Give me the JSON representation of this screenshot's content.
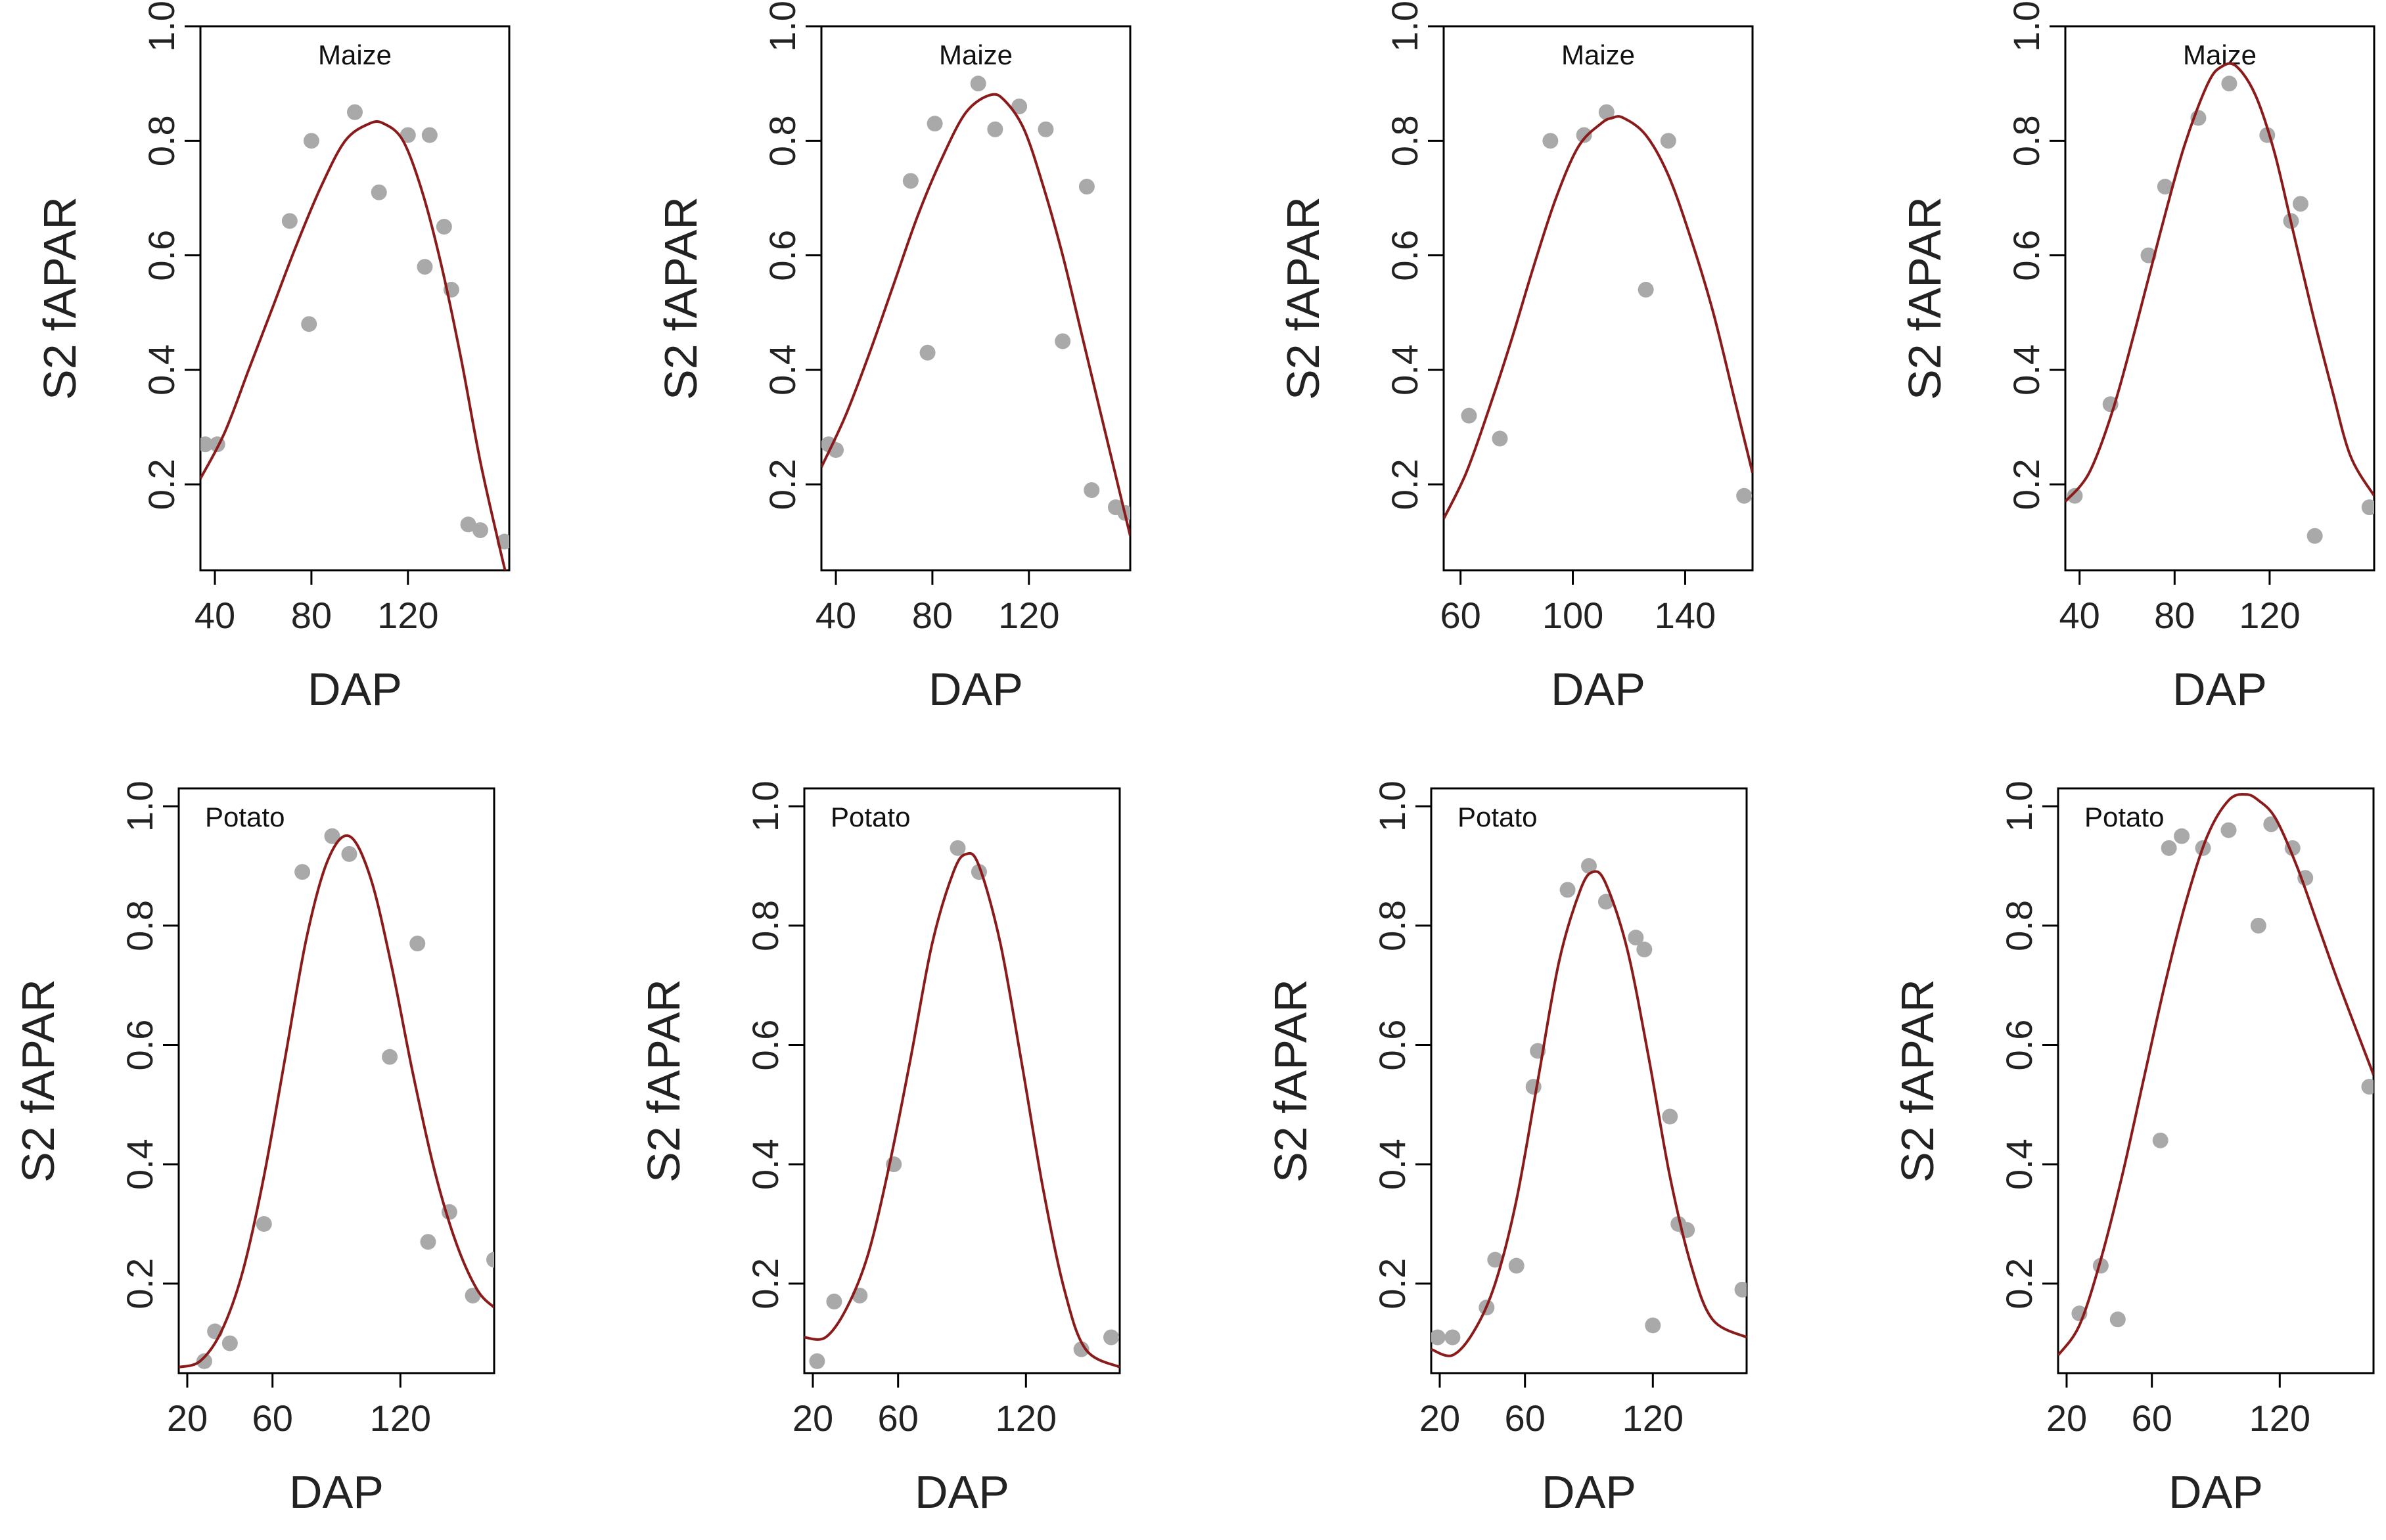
{
  "figure": {
    "colors": {
      "point": "#a9a9a9",
      "curve": "#8b1a1a",
      "frame": "#000000",
      "text": "#222222"
    }
  },
  "chart_data": [
    {
      "type": "scatter",
      "title": "Maize",
      "xlabel": "DAP",
      "ylabel": "S2 fAPAR",
      "xlim": [
        34,
        162
      ],
      "ylim": [
        0.05,
        1.0
      ],
      "xticks": [
        "40",
        "80",
        "120"
      ],
      "xtick_values": [
        40,
        80,
        120
      ],
      "yticks": [
        "0.2",
        "0.4",
        "0.6",
        "0.8",
        "1.0"
      ],
      "ytick_values": [
        0.2,
        0.4,
        0.6,
        0.8,
        1.0
      ],
      "points": [
        [
          36,
          0.27
        ],
        [
          41,
          0.27
        ],
        [
          71,
          0.66
        ],
        [
          79,
          0.48
        ],
        [
          80,
          0.8
        ],
        [
          98,
          0.85
        ],
        [
          108,
          0.71
        ],
        [
          120,
          0.81
        ],
        [
          127,
          0.58
        ],
        [
          129,
          0.81
        ],
        [
          135,
          0.65
        ],
        [
          138,
          0.54
        ],
        [
          145,
          0.13
        ],
        [
          150,
          0.12
        ],
        [
          160,
          0.1
        ]
      ],
      "fit": {
        "x": [
          34,
          44,
          54,
          64,
          74,
          84,
          94,
          104,
          110,
          118,
          126,
          134,
          142,
          150,
          158,
          162
        ],
        "y": [
          0.21,
          0.29,
          0.4,
          0.51,
          0.62,
          0.72,
          0.8,
          0.83,
          0.83,
          0.8,
          0.71,
          0.58,
          0.42,
          0.24,
          0.09,
          0.02
        ]
      }
    },
    {
      "type": "scatter",
      "title": "Maize",
      "xlabel": "DAP",
      "ylabel": "S2 fAPAR",
      "xlim": [
        34,
        162
      ],
      "ylim": [
        0.05,
        1.0
      ],
      "xticks": [
        "40",
        "80",
        "120"
      ],
      "xtick_values": [
        40,
        80,
        120
      ],
      "yticks": [
        "0.2",
        "0.4",
        "0.6",
        "0.8",
        "1.0"
      ],
      "ytick_values": [
        0.2,
        0.4,
        0.6,
        0.8,
        1.0
      ],
      "points": [
        [
          37,
          0.27
        ],
        [
          40,
          0.26
        ],
        [
          71,
          0.73
        ],
        [
          78,
          0.43
        ],
        [
          81,
          0.83
        ],
        [
          99,
          0.9
        ],
        [
          106,
          0.82
        ],
        [
          116,
          0.86
        ],
        [
          127,
          0.82
        ],
        [
          134,
          0.45
        ],
        [
          144,
          0.72
        ],
        [
          146,
          0.19
        ],
        [
          156,
          0.16
        ],
        [
          160,
          0.15
        ]
      ],
      "fit": {
        "x": [
          34,
          44,
          54,
          64,
          74,
          84,
          94,
          104,
          110,
          118,
          126,
          134,
          142,
          150,
          158,
          162
        ],
        "y": [
          0.23,
          0.32,
          0.43,
          0.55,
          0.67,
          0.77,
          0.85,
          0.88,
          0.87,
          0.82,
          0.72,
          0.6,
          0.46,
          0.32,
          0.18,
          0.11
        ]
      }
    },
    {
      "type": "scatter",
      "title": "Maize",
      "xlabel": "DAP",
      "ylabel": "S2 fAPAR",
      "xlim": [
        54,
        164
      ],
      "ylim": [
        0.05,
        1.0
      ],
      "xticks": [
        "60",
        "100",
        "140"
      ],
      "xtick_values": [
        60,
        100,
        140
      ],
      "yticks": [
        "0.2",
        "0.4",
        "0.6",
        "0.8",
        "1.0"
      ],
      "ytick_values": [
        0.2,
        0.4,
        0.6,
        0.8,
        1.0
      ],
      "points": [
        [
          63,
          0.32
        ],
        [
          74,
          0.28
        ],
        [
          92,
          0.8
        ],
        [
          104,
          0.81
        ],
        [
          112,
          0.85
        ],
        [
          126,
          0.54
        ],
        [
          134,
          0.8
        ],
        [
          161,
          0.18
        ]
      ],
      "fit": {
        "x": [
          54,
          62,
          70,
          78,
          86,
          94,
          102,
          110,
          114,
          118,
          126,
          134,
          142,
          150,
          158,
          164
        ],
        "y": [
          0.14,
          0.22,
          0.33,
          0.45,
          0.58,
          0.7,
          0.79,
          0.83,
          0.84,
          0.84,
          0.81,
          0.74,
          0.63,
          0.5,
          0.34,
          0.22
        ]
      }
    },
    {
      "type": "scatter",
      "title": "Maize",
      "xlabel": "DAP",
      "ylabel": "S2 fAPAR",
      "xlim": [
        34,
        164
      ],
      "ylim": [
        0.05,
        1.0
      ],
      "xticks": [
        "40",
        "80",
        "120"
      ],
      "xtick_values": [
        40,
        80,
        120
      ],
      "yticks": [
        "0.2",
        "0.4",
        "0.6",
        "0.8",
        "1.0"
      ],
      "ytick_values": [
        0.2,
        0.4,
        0.6,
        0.8,
        1.0
      ],
      "points": [
        [
          38,
          0.18
        ],
        [
          53,
          0.34
        ],
        [
          69,
          0.6
        ],
        [
          76,
          0.72
        ],
        [
          90,
          0.84
        ],
        [
          103,
          0.9
        ],
        [
          119,
          0.81
        ],
        [
          129,
          0.66
        ],
        [
          133,
          0.69
        ],
        [
          139,
          0.11
        ],
        [
          162,
          0.16
        ]
      ],
      "fit": {
        "x": [
          34,
          44,
          54,
          64,
          74,
          84,
          94,
          100,
          106,
          114,
          122,
          130,
          138,
          146,
          154,
          164
        ],
        "y": [
          0.17,
          0.22,
          0.33,
          0.48,
          0.64,
          0.79,
          0.9,
          0.93,
          0.93,
          0.88,
          0.78,
          0.64,
          0.5,
          0.37,
          0.25,
          0.18
        ]
      }
    },
    {
      "type": "scatter",
      "title": "Potato",
      "xlabel": "DAP",
      "ylabel": "S2 fAPAR",
      "xlim": [
        16,
        164
      ],
      "ylim": [
        0.05,
        1.03
      ],
      "xticks": [
        "20",
        "60",
        "120"
      ],
      "xtick_values": [
        20,
        60,
        120
      ],
      "yticks": [
        "0.2",
        "0.4",
        "0.6",
        "0.8",
        "1.0"
      ],
      "ytick_values": [
        0.2,
        0.4,
        0.6,
        0.8,
        1.0
      ],
      "points": [
        [
          28,
          0.07
        ],
        [
          33,
          0.12
        ],
        [
          40,
          0.1
        ],
        [
          56,
          0.3
        ],
        [
          74,
          0.89
        ],
        [
          88,
          0.95
        ],
        [
          96,
          0.92
        ],
        [
          115,
          0.58
        ],
        [
          128,
          0.77
        ],
        [
          133,
          0.27
        ],
        [
          143,
          0.32
        ],
        [
          154,
          0.18
        ],
        [
          164,
          0.24
        ]
      ],
      "fit": {
        "x": [
          16,
          26,
          36,
          46,
          56,
          66,
          76,
          86,
          96,
          106,
          116,
          126,
          136,
          146,
          156,
          164
        ],
        "y": [
          0.06,
          0.07,
          0.12,
          0.22,
          0.38,
          0.58,
          0.78,
          0.91,
          0.95,
          0.88,
          0.73,
          0.55,
          0.39,
          0.27,
          0.19,
          0.16
        ]
      }
    },
    {
      "type": "scatter",
      "title": "Potato",
      "xlabel": "DAP",
      "ylabel": "S2 fAPAR",
      "xlim": [
        16,
        164
      ],
      "ylim": [
        0.05,
        1.03
      ],
      "xticks": [
        "20",
        "60",
        "120"
      ],
      "xtick_values": [
        20,
        60,
        120
      ],
      "yticks": [
        "0.2",
        "0.4",
        "0.6",
        "0.8",
        "1.0"
      ],
      "ytick_values": [
        0.2,
        0.4,
        0.6,
        0.8,
        1.0
      ],
      "points": [
        [
          22,
          0.07
        ],
        [
          30,
          0.17
        ],
        [
          42,
          0.18
        ],
        [
          58,
          0.4
        ],
        [
          88,
          0.93
        ],
        [
          98,
          0.89
        ],
        [
          146,
          0.09
        ],
        [
          160,
          0.11
        ]
      ],
      "fit": {
        "x": [
          16,
          26,
          36,
          46,
          56,
          66,
          76,
          86,
          92,
          98,
          108,
          118,
          128,
          138,
          148,
          164
        ],
        "y": [
          0.11,
          0.11,
          0.16,
          0.25,
          0.4,
          0.58,
          0.77,
          0.89,
          0.92,
          0.9,
          0.77,
          0.57,
          0.36,
          0.19,
          0.09,
          0.06
        ]
      }
    },
    {
      "type": "scatter",
      "title": "Potato",
      "xlabel": "DAP",
      "ylabel": "S2 fAPAR",
      "xlim": [
        16,
        164
      ],
      "ylim": [
        0.05,
        1.03
      ],
      "xticks": [
        "20",
        "60",
        "120"
      ],
      "xtick_values": [
        20,
        60,
        120
      ],
      "yticks": [
        "0.2",
        "0.4",
        "0.6",
        "0.8",
        "1.0"
      ],
      "ytick_values": [
        0.2,
        0.4,
        0.6,
        0.8,
        1.0
      ],
      "points": [
        [
          19,
          0.11
        ],
        [
          26,
          0.11
        ],
        [
          42,
          0.16
        ],
        [
          46,
          0.24
        ],
        [
          56,
          0.23
        ],
        [
          64,
          0.53
        ],
        [
          66,
          0.59
        ],
        [
          80,
          0.86
        ],
        [
          90,
          0.9
        ],
        [
          98,
          0.84
        ],
        [
          112,
          0.78
        ],
        [
          116,
          0.76
        ],
        [
          120,
          0.13
        ],
        [
          128,
          0.48
        ],
        [
          132,
          0.3
        ],
        [
          136,
          0.29
        ],
        [
          162,
          0.19
        ]
      ],
      "fit": {
        "x": [
          16,
          26,
          36,
          46,
          56,
          66,
          76,
          86,
          92,
          98,
          108,
          118,
          128,
          138,
          148,
          164
        ],
        "y": [
          0.09,
          0.08,
          0.12,
          0.2,
          0.34,
          0.54,
          0.74,
          0.86,
          0.89,
          0.87,
          0.76,
          0.58,
          0.38,
          0.23,
          0.14,
          0.11
        ]
      }
    },
    {
      "type": "scatter",
      "title": "Potato",
      "xlabel": "DAP",
      "ylabel": "S2 fAPAR",
      "xlim": [
        16,
        164
      ],
      "ylim": [
        0.05,
        1.03
      ],
      "xticks": [
        "20",
        "60",
        "120"
      ],
      "xtick_values": [
        20,
        60,
        120
      ],
      "yticks": [
        "0.2",
        "0.4",
        "0.6",
        "0.8",
        "1.0"
      ],
      "ytick_values": [
        0.2,
        0.4,
        0.6,
        0.8,
        1.0
      ],
      "points": [
        [
          26,
          0.15
        ],
        [
          36,
          0.23
        ],
        [
          44,
          0.14
        ],
        [
          64,
          0.44
        ],
        [
          68,
          0.93
        ],
        [
          74,
          0.95
        ],
        [
          84,
          0.93
        ],
        [
          96,
          0.96
        ],
        [
          110,
          0.8
        ],
        [
          116,
          0.97
        ],
        [
          126,
          0.93
        ],
        [
          132,
          0.88
        ],
        [
          162,
          0.53
        ]
      ],
      "fit": {
        "x": [
          16,
          26,
          36,
          46,
          56,
          66,
          76,
          86,
          96,
          104,
          110,
          118,
          128,
          138,
          148,
          164
        ],
        "y": [
          0.08,
          0.13,
          0.24,
          0.38,
          0.54,
          0.7,
          0.84,
          0.95,
          1.01,
          1.02,
          1.01,
          0.98,
          0.9,
          0.8,
          0.7,
          0.55
        ]
      }
    }
  ]
}
